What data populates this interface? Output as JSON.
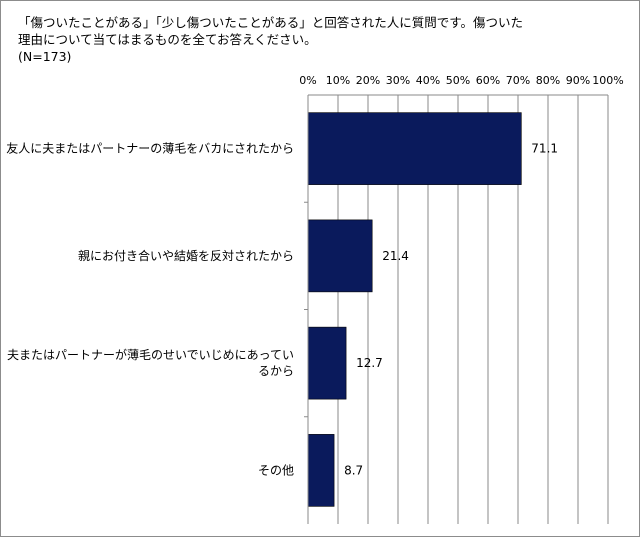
{
  "chart_data": {
    "type": "bar",
    "orientation": "horizontal",
    "title": "「傷ついたことがある」「少し傷ついたことがある」と回答された人に質問です。傷ついた理由について当てはまるものを全てお答えください。",
    "title_lines": [
      "「傷ついたことがある」「少し傷ついたことがある」と回答された人に質問です。傷ついた",
      "理由について当てはまるものを全てお答えください。",
      "(N=173)"
    ],
    "subtitle": "(N=173)",
    "categories": [
      "友人に夫またはパートナーの薄毛をバカにされたから",
      "親にお付き合いや結婚を反対されたから",
      "夫またはパートナーが薄毛のせいでいじめにあっているから",
      "その他"
    ],
    "category_lines": [
      [
        "友人に夫またはパートナーの薄毛をバカにされたから"
      ],
      [
        "親にお付き合いや結婚を反対されたから"
      ],
      [
        "夫またはパートナーが薄毛のせいでいじめにあってい",
        "るから"
      ],
      [
        "その他"
      ]
    ],
    "values": [
      71.1,
      21.4,
      12.7,
      8.7
    ],
    "value_labels": [
      "71.1",
      "21.4",
      "12.7",
      "8.7"
    ],
    "xlim": [
      0,
      100
    ],
    "ticks": [
      0,
      10,
      20,
      30,
      40,
      50,
      60,
      70,
      80,
      90,
      100
    ],
    "tick_labels": [
      "0%",
      "10%",
      "20%",
      "30%",
      "40%",
      "50%",
      "60%",
      "70%",
      "80%",
      "90%",
      "100%"
    ],
    "grid": true,
    "bar_color": "#0a1a5c",
    "xlabel": "",
    "ylabel": ""
  }
}
